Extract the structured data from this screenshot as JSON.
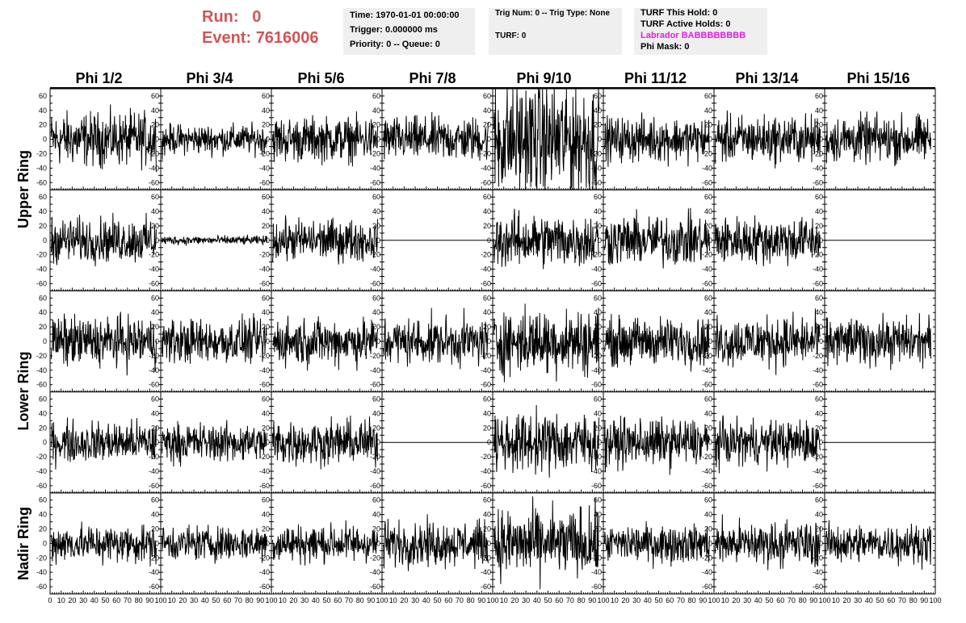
{
  "header": {
    "run_label": "Run:",
    "run_value": "0",
    "event_label": "Event:",
    "event_value": "7616006"
  },
  "info_time": {
    "time": "Time: 1970-01-01 00:00:00",
    "trigger": "Trigger: 0.000000 ms",
    "priority": "Priority: 0 -- Queue: 0"
  },
  "info_trig": {
    "trig": "Trig Num: 0 -- Trig Type: None",
    "turf": "TURF: 0"
  },
  "info_turf": {
    "this_hold": "TURF This Hold: 0",
    "active_holds": "TURF Active Holds: 0",
    "labrador": "Labrador BABBBBBBBB",
    "phi_mask": "Phi Mask: 0"
  },
  "phi_headers": [
    "Phi 1/2",
    "Phi 3/4",
    "Phi 5/6",
    "Phi 7/8",
    "Phi 9/10",
    "Phi 11/12",
    "Phi 13/14",
    "Phi 15/16"
  ],
  "ring_labels": [
    "Upper Ring",
    "Lower Ring",
    "Nadir Ring"
  ],
  "y_ticks": [
    "60",
    "40",
    "20",
    "0",
    "-20",
    "-40",
    "-60"
  ],
  "x_ticks_first": [
    "0",
    "10",
    "20",
    "30",
    "40",
    "50",
    "60",
    "70",
    "80",
    "90",
    "100"
  ],
  "x_ticks_other": [
    "10",
    "20",
    "30",
    "40",
    "50",
    "60",
    "70",
    "80",
    "90",
    "100"
  ],
  "chart_data": {
    "type": "line",
    "layout": "grid of 5 rows x 8 columns of waveform panels",
    "x_range": [
      0,
      100
    ],
    "y_range": [
      -70,
      70
    ],
    "rows": [
      "Upper Ring (upper)",
      "Upper Ring (lower)",
      "Lower Ring (upper)",
      "Lower Ring (lower)",
      "Nadir Ring"
    ],
    "columns": [
      "Phi 1/2",
      "Phi 3/4",
      "Phi 5/6",
      "Phi 7/8",
      "Phi 9/10",
      "Phi 11/12",
      "Phi 13/14",
      "Phi 15/16"
    ],
    "approx_amplitude": [
      [
        18,
        10,
        15,
        15,
        40,
        15,
        16,
        16
      ],
      [
        15,
        3,
        14,
        0,
        18,
        17,
        16,
        0
      ],
      [
        17,
        15,
        16,
        16,
        22,
        16,
        17,
        16
      ],
      [
        14,
        13,
        15,
        0,
        20,
        16,
        15,
        0
      ],
      [
        13,
        12,
        13,
        15,
        23,
        13,
        15,
        13
      ]
    ]
  }
}
